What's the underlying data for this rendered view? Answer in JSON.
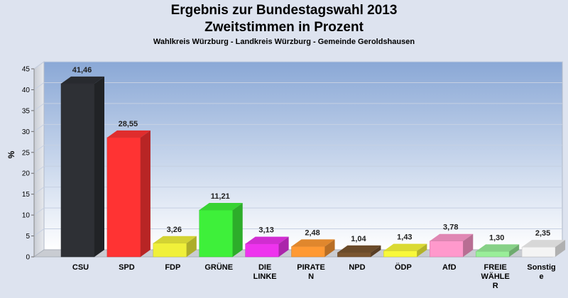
{
  "chart_data": {
    "type": "bar",
    "title": "Ergebnis zur Bundestagswahl 2013",
    "title2": "Zweitstimmen in Prozent",
    "subtitle": "Wahlkreis Würzburg - Landkreis Würzburg - Gemeinde Geroldshausen",
    "ylabel": "%",
    "ylim": [
      0,
      45
    ],
    "yticks": [
      0,
      5,
      10,
      15,
      20,
      25,
      30,
      35,
      40,
      45
    ],
    "grid": true,
    "categories": [
      [
        "CSU"
      ],
      [
        "SPD"
      ],
      [
        "FDP"
      ],
      [
        "GRÜNE"
      ],
      [
        "DIE",
        "LINKE"
      ],
      [
        "PIRATE",
        "N"
      ],
      [
        "NPD"
      ],
      [
        "ÖDP"
      ],
      [
        "AfD"
      ],
      [
        "FREIE",
        "WÄHLE",
        "R"
      ],
      [
        "Sonstig",
        "e"
      ]
    ],
    "values": [
      41.46,
      28.55,
      3.26,
      11.21,
      3.13,
      2.48,
      1.04,
      1.43,
      3.78,
      1.3,
      2.35
    ],
    "value_labels": [
      "41,46",
      "28,55",
      "3,26",
      "11,21",
      "3,13",
      "2,48",
      "1,04",
      "1,43",
      "3,78",
      "1,30",
      "2,35"
    ],
    "colors": [
      "#2e3035",
      "#ff3333",
      "#f0f03a",
      "#3ef03a",
      "#ee33ee",
      "#ff9933",
      "#7a5530",
      "#f8f83a",
      "#ff99cc",
      "#99ee99",
      "#f4f4f4"
    ]
  }
}
